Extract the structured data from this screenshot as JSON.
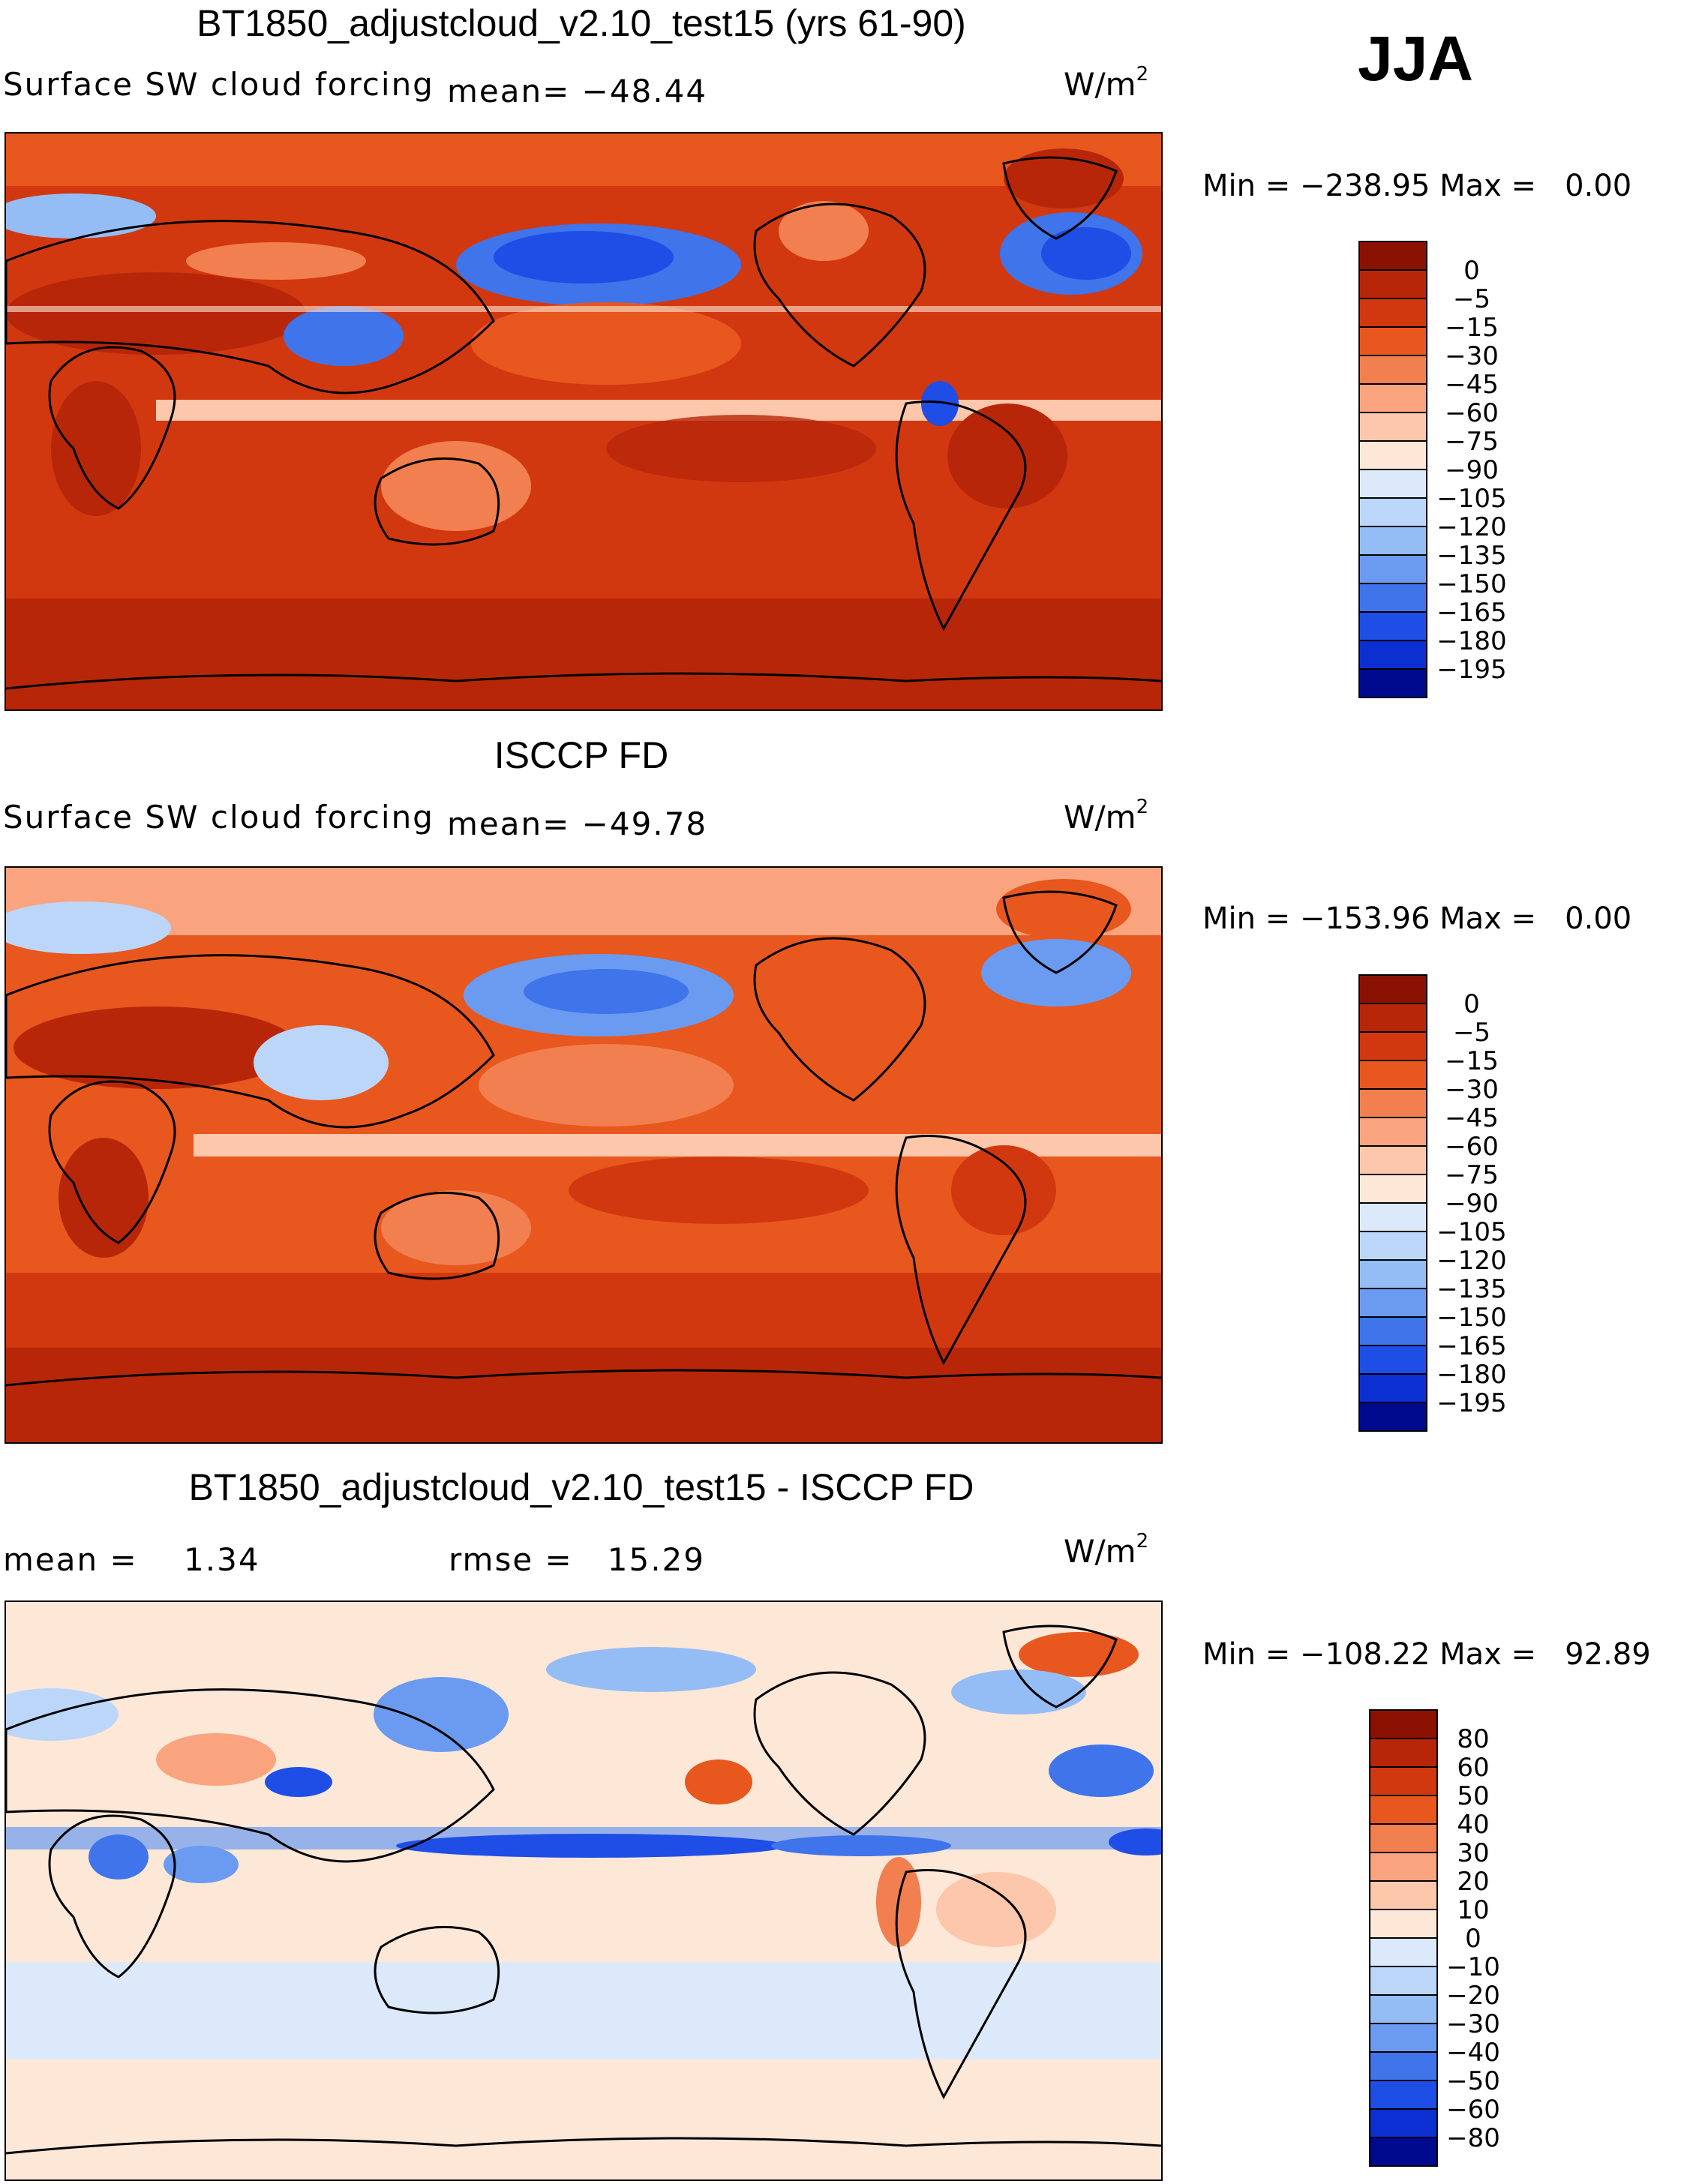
{
  "season": "JJA",
  "panels": [
    {
      "id": "model",
      "title": "BT1850_adjustcloud_v2.10_test15 (yrs 61-90)",
      "left_label": "Surface SW cloud forcing",
      "mean_label": "mean= −48.44",
      "units": "W/m",
      "units_sup": "2",
      "min_max": "Min = −238.95 Max =   0.00",
      "map_image": "world-map-sw-cloud-forcing-model",
      "colorbar_levels": [
        "0",
        "−5",
        "−15",
        "−30",
        "−45",
        "−60",
        "−75",
        "−90",
        "−105",
        "−120",
        "−135",
        "−150",
        "−165",
        "−180",
        "−195"
      ],
      "colorbar_colors": [
        "#8b1203",
        "#b8260a",
        "#d2380f",
        "#e8571e",
        "#f27f4f",
        "#f9a47f",
        "#fcc7aa",
        "#fde7d7",
        "#dbe9fb",
        "#bcd6fa",
        "#95bdf5",
        "#6b9bf0",
        "#3f74ea",
        "#1e4ee6",
        "#0c2fd2",
        "#000a8e"
      ]
    },
    {
      "id": "obs",
      "title": "ISCCP FD",
      "left_label": "Surface SW cloud forcing",
      "mean_label": "mean= −49.78",
      "units": "W/m",
      "units_sup": "2",
      "min_max": "Min = −153.96 Max =   0.00",
      "map_image": "world-map-sw-cloud-forcing-isccp",
      "colorbar_levels": [
        "0",
        "−5",
        "−15",
        "−30",
        "−45",
        "−60",
        "−75",
        "−90",
        "−105",
        "−120",
        "−135",
        "−150",
        "−165",
        "−180",
        "−195"
      ],
      "colorbar_colors": [
        "#8b1203",
        "#b8260a",
        "#d2380f",
        "#e8571e",
        "#f27f4f",
        "#f9a47f",
        "#fcc7aa",
        "#fde7d7",
        "#dbe9fb",
        "#bcd6fa",
        "#95bdf5",
        "#6b9bf0",
        "#3f74ea",
        "#1e4ee6",
        "#0c2fd2",
        "#000a8e"
      ]
    },
    {
      "id": "diff",
      "title": "BT1850_adjustcloud_v2.10_test15 - ISCCP FD",
      "mean_text": "mean =    1.34",
      "rmse_text": "rmse =   15.29",
      "units": "W/m",
      "units_sup": "2",
      "min_max": "Min = −108.22 Max =   92.89",
      "map_image": "world-map-sw-cloud-forcing-difference",
      "colorbar_levels": [
        "80",
        "60",
        "50",
        "40",
        "30",
        "20",
        "10",
        "0",
        "−10",
        "−20",
        "−30",
        "−40",
        "−50",
        "−60",
        "−80"
      ],
      "colorbar_colors": [
        "#8b1203",
        "#b8260a",
        "#d2380f",
        "#e8571e",
        "#f27f4f",
        "#f9a47f",
        "#fcc7aa",
        "#fde7d7",
        "#dbe9fb",
        "#bcd6fa",
        "#95bdf5",
        "#6b9bf0",
        "#3f74ea",
        "#1e4ee6",
        "#0c2fd2",
        "#000a8e"
      ]
    }
  ]
}
